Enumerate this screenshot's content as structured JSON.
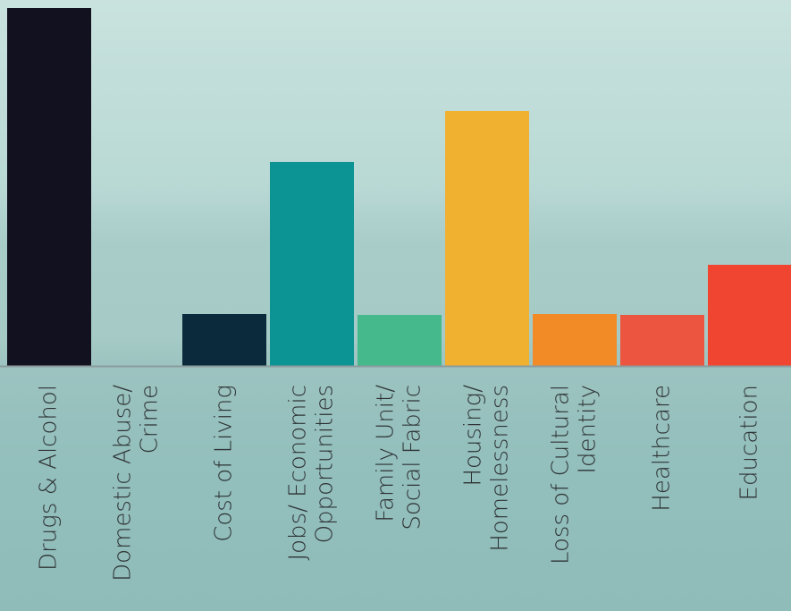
{
  "chart_data": {
    "type": "bar",
    "categories": [
      [
        "Drugs & Alcohol"
      ],
      [
        "Domestic Abuse/",
        "Crime"
      ],
      [
        "Cost of Living"
      ],
      [
        "Jobs/ Economic",
        "Opportunities"
      ],
      [
        "Family Unit/",
        "Social Fabric"
      ],
      [
        "Housing/",
        "Homelessness"
      ],
      [
        "Loss of Cultural",
        "Identity"
      ],
      [
        "Healthcare"
      ],
      [
        "Education"
      ]
    ],
    "values": [
      400,
      0,
      58,
      228,
      57,
      285,
      58,
      57,
      113
    ],
    "colors": [
      "#11111f",
      "#7a3030",
      "#0b2b3d",
      "#0c9494",
      "#45b88c",
      "#f0b030",
      "#f28a25",
      "#ec5540",
      "#f04530"
    ],
    "ylim": [
      0,
      400
    ]
  }
}
